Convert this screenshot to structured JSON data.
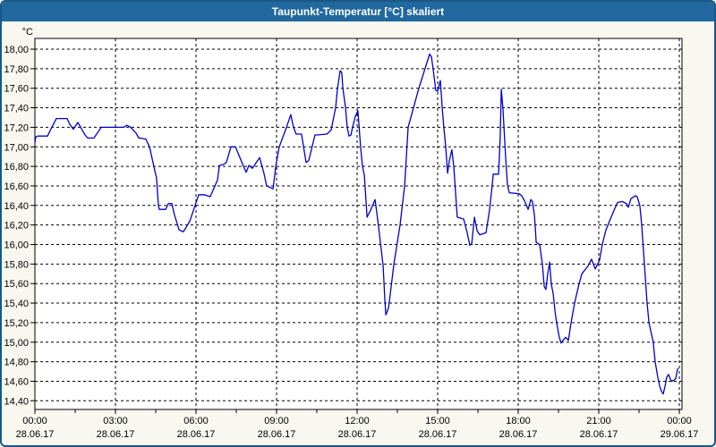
{
  "window": {
    "title": "Taupunkt-Temperatur [°C] skaliert"
  },
  "colors": {
    "titlebar_bg": "#20689E",
    "titlebar_text": "#FFFFFF",
    "frame_border": "#1A5784",
    "panel_bg": "#F8F8F0",
    "plot_bg": "#FFFFFF",
    "grid": "#000000",
    "axis": "#000000",
    "text": "#000000",
    "line": "#0000CC"
  },
  "chart_data": {
    "type": "line",
    "title": "Taupunkt-Temperatur [°C] skaliert",
    "ylabel": "°C",
    "ylim": [
      14.4,
      18.0
    ],
    "y_tick_step": 0.2,
    "y_tick_labels": [
      "18,00",
      "17,80",
      "17,60",
      "17,40",
      "17,20",
      "17,00",
      "16,80",
      "16,60",
      "16,40",
      "16,20",
      "16,00",
      "15,80",
      "15,60",
      "15,40",
      "15,20",
      "15,00",
      "14,80",
      "14,60",
      "14,40"
    ],
    "x_axis_hours": [
      0,
      24.1
    ],
    "minor_tick_interval_hours": 1.5,
    "grid": true,
    "x_major_ticks": [
      {
        "hour": 0,
        "time": "00:00",
        "date": "28.06.17"
      },
      {
        "hour": 3,
        "time": "03:00",
        "date": "28.06.17"
      },
      {
        "hour": 6,
        "time": "06:00",
        "date": "28.06.17"
      },
      {
        "hour": 9,
        "time": "09:00",
        "date": "28.06.17"
      },
      {
        "hour": 12,
        "time": "12:00",
        "date": "28.06.17"
      },
      {
        "hour": 15,
        "time": "15:00",
        "date": "28.06.17"
      },
      {
        "hour": 18,
        "time": "18:00",
        "date": "28.06.17"
      },
      {
        "hour": 21,
        "time": "21:00",
        "date": "28.06.17"
      },
      {
        "hour": 24,
        "time": "00:00",
        "date": "29.06.17"
      }
    ],
    "series": [
      {
        "name": "Taupunkt-Temperatur",
        "color": "#0000CC",
        "points": [
          [
            0.0,
            17.04
          ],
          [
            0.03,
            17.1
          ],
          [
            0.1,
            17.11
          ],
          [
            0.47,
            17.11
          ],
          [
            0.63,
            17.2
          ],
          [
            0.8,
            17.29
          ],
          [
            1.2,
            17.29
          ],
          [
            1.3,
            17.23
          ],
          [
            1.43,
            17.18
          ],
          [
            1.6,
            17.25
          ],
          [
            1.87,
            17.12
          ],
          [
            1.97,
            17.09
          ],
          [
            2.2,
            17.09
          ],
          [
            2.37,
            17.16
          ],
          [
            2.47,
            17.2
          ],
          [
            3.3,
            17.2
          ],
          [
            3.43,
            17.22
          ],
          [
            3.57,
            17.2
          ],
          [
            3.77,
            17.14
          ],
          [
            3.87,
            17.09
          ],
          [
            4.13,
            17.08
          ],
          [
            4.27,
            17.0
          ],
          [
            4.43,
            16.8
          ],
          [
            4.53,
            16.68
          ],
          [
            4.6,
            16.4
          ],
          [
            4.63,
            16.36
          ],
          [
            4.87,
            16.36
          ],
          [
            4.97,
            16.42
          ],
          [
            5.1,
            16.42
          ],
          [
            5.2,
            16.3
          ],
          [
            5.27,
            16.24
          ],
          [
            5.37,
            16.15
          ],
          [
            5.53,
            16.13
          ],
          [
            5.77,
            16.24
          ],
          [
            5.93,
            16.37
          ],
          [
            6.1,
            16.51
          ],
          [
            6.3,
            16.51
          ],
          [
            6.53,
            16.49
          ],
          [
            6.8,
            16.66
          ],
          [
            6.87,
            16.81
          ],
          [
            7.03,
            16.82
          ],
          [
            7.13,
            16.84
          ],
          [
            7.3,
            17.0
          ],
          [
            7.47,
            17.0
          ],
          [
            7.77,
            16.8
          ],
          [
            7.87,
            16.74
          ],
          [
            7.97,
            16.81
          ],
          [
            8.1,
            16.78
          ],
          [
            8.37,
            16.89
          ],
          [
            8.53,
            16.73
          ],
          [
            8.63,
            16.6
          ],
          [
            8.87,
            16.57
          ],
          [
            8.97,
            16.8
          ],
          [
            9.1,
            17.0
          ],
          [
            9.37,
            17.2
          ],
          [
            9.53,
            17.33
          ],
          [
            9.63,
            17.2
          ],
          [
            9.73,
            17.13
          ],
          [
            9.93,
            17.13
          ],
          [
            10.1,
            16.84
          ],
          [
            10.2,
            16.86
          ],
          [
            10.43,
            17.12
          ],
          [
            10.87,
            17.13
          ],
          [
            11.03,
            17.17
          ],
          [
            11.2,
            17.4
          ],
          [
            11.27,
            17.6
          ],
          [
            11.37,
            17.78
          ],
          [
            11.43,
            17.76
          ],
          [
            11.47,
            17.6
          ],
          [
            11.57,
            17.4
          ],
          [
            11.63,
            17.2
          ],
          [
            11.7,
            17.11
          ],
          [
            11.77,
            17.12
          ],
          [
            11.83,
            17.2
          ],
          [
            11.93,
            17.31
          ],
          [
            12.03,
            17.37
          ],
          [
            12.13,
            17.0
          ],
          [
            12.2,
            16.8
          ],
          [
            12.27,
            16.71
          ],
          [
            12.37,
            16.28
          ],
          [
            12.5,
            16.35
          ],
          [
            12.67,
            16.46
          ],
          [
            12.8,
            16.18
          ],
          [
            12.97,
            15.78
          ],
          [
            13.03,
            15.45
          ],
          [
            13.07,
            15.28
          ],
          [
            13.17,
            15.35
          ],
          [
            13.23,
            15.48
          ],
          [
            13.37,
            15.8
          ],
          [
            13.6,
            16.2
          ],
          [
            13.77,
            16.6
          ],
          [
            13.9,
            17.2
          ],
          [
            14.1,
            17.4
          ],
          [
            14.3,
            17.6
          ],
          [
            14.53,
            17.8
          ],
          [
            14.7,
            17.95
          ],
          [
            14.77,
            17.92
          ],
          [
            14.83,
            17.8
          ],
          [
            14.93,
            17.58
          ],
          [
            15.0,
            17.57
          ],
          [
            15.1,
            17.68
          ],
          [
            15.17,
            17.4
          ],
          [
            15.23,
            17.2
          ],
          [
            15.3,
            17.0
          ],
          [
            15.37,
            16.73
          ],
          [
            15.43,
            16.85
          ],
          [
            15.53,
            16.97
          ],
          [
            15.6,
            16.8
          ],
          [
            15.67,
            16.52
          ],
          [
            15.73,
            16.28
          ],
          [
            15.97,
            16.26
          ],
          [
            16.1,
            16.12
          ],
          [
            16.2,
            15.99
          ],
          [
            16.27,
            16.01
          ],
          [
            16.37,
            16.28
          ],
          [
            16.47,
            16.14
          ],
          [
            16.57,
            16.1
          ],
          [
            16.8,
            16.12
          ],
          [
            16.93,
            16.35
          ],
          [
            17.03,
            16.6
          ],
          [
            17.07,
            16.72
          ],
          [
            17.27,
            16.72
          ],
          [
            17.33,
            17.1
          ],
          [
            17.37,
            17.59
          ],
          [
            17.43,
            17.4
          ],
          [
            17.47,
            17.2
          ],
          [
            17.53,
            16.9
          ],
          [
            17.6,
            16.61
          ],
          [
            17.67,
            16.53
          ],
          [
            18.03,
            16.52
          ],
          [
            18.13,
            16.5
          ],
          [
            18.23,
            16.45
          ],
          [
            18.37,
            16.36
          ],
          [
            18.47,
            16.46
          ],
          [
            18.53,
            16.44
          ],
          [
            18.6,
            16.31
          ],
          [
            18.63,
            16.2
          ],
          [
            18.67,
            16.02
          ],
          [
            18.8,
            16.0
          ],
          [
            18.9,
            15.8
          ],
          [
            18.97,
            15.57
          ],
          [
            19.03,
            15.54
          ],
          [
            19.1,
            15.7
          ],
          [
            19.17,
            15.82
          ],
          [
            19.23,
            15.6
          ],
          [
            19.3,
            15.5
          ],
          [
            19.37,
            15.32
          ],
          [
            19.43,
            15.2
          ],
          [
            19.53,
            15.05
          ],
          [
            19.6,
            14.99
          ],
          [
            19.67,
            15.02
          ],
          [
            19.77,
            15.05
          ],
          [
            19.87,
            15.02
          ],
          [
            19.97,
            15.2
          ],
          [
            20.1,
            15.4
          ],
          [
            20.27,
            15.6
          ],
          [
            20.37,
            15.7
          ],
          [
            20.6,
            15.78
          ],
          [
            20.73,
            15.85
          ],
          [
            20.87,
            15.75
          ],
          [
            21.03,
            15.84
          ],
          [
            21.13,
            16.0
          ],
          [
            21.27,
            16.15
          ],
          [
            21.43,
            16.26
          ],
          [
            21.6,
            16.37
          ],
          [
            21.7,
            16.43
          ],
          [
            21.87,
            16.44
          ],
          [
            22.03,
            16.42
          ],
          [
            22.1,
            16.38
          ],
          [
            22.2,
            16.47
          ],
          [
            22.37,
            16.5
          ],
          [
            22.43,
            16.49
          ],
          [
            22.53,
            16.4
          ],
          [
            22.6,
            16.2
          ],
          [
            22.7,
            15.8
          ],
          [
            22.8,
            15.4
          ],
          [
            22.87,
            15.2
          ],
          [
            23.03,
            15.0
          ],
          [
            23.1,
            14.8
          ],
          [
            23.2,
            14.64
          ],
          [
            23.27,
            14.55
          ],
          [
            23.33,
            14.5
          ],
          [
            23.4,
            14.47
          ],
          [
            23.47,
            14.55
          ],
          [
            23.53,
            14.64
          ],
          [
            23.6,
            14.67
          ],
          [
            23.7,
            14.6
          ],
          [
            23.8,
            14.61
          ],
          [
            23.87,
            14.63
          ],
          [
            23.93,
            14.72
          ],
          [
            23.97,
            14.73
          ]
        ]
      }
    ]
  }
}
